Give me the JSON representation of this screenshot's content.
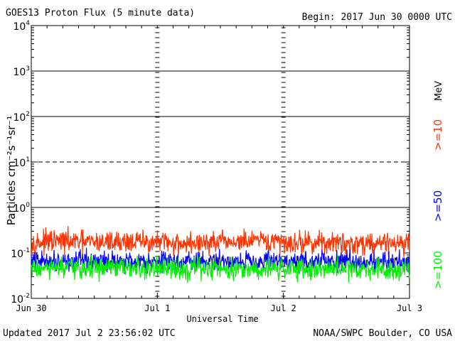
{
  "header": {
    "title": "GOES13 Proton Flux (5 minute data)",
    "begin": "Begin: 2017 Jun 30 0000 UTC"
  },
  "footer": {
    "updated": "Updated 2017 Jul  2 23:56:02 UTC",
    "credit": "NOAA/SWPC Boulder, CO USA"
  },
  "chart_data": {
    "type": "line",
    "title": "GOES13 Proton Flux (5 minute data)",
    "xlabel": "Universal Time",
    "ylabel": "Particles cm⁻²s⁻¹sr⁻¹",
    "y_scale": "log",
    "ylim": [
      0.01,
      10000
    ],
    "y_ticks": [
      {
        "value": 0.01,
        "base": "10",
        "exp": "-2"
      },
      {
        "value": 0.1,
        "base": "10",
        "exp": "-1"
      },
      {
        "value": 1,
        "base": "10",
        "exp": "0"
      },
      {
        "value": 10,
        "base": "10",
        "exp": "1"
      },
      {
        "value": 100,
        "base": "10",
        "exp": "2"
      },
      {
        "value": 1000,
        "base": "10",
        "exp": "3"
      },
      {
        "value": 10000,
        "base": "10",
        "exp": "4"
      }
    ],
    "x_range_days": [
      0,
      3
    ],
    "x_ticks": [
      {
        "day": 0,
        "label": "Jun 30"
      },
      {
        "day": 1,
        "label": "Jul 1"
      },
      {
        "day": 2,
        "label": "Jul 2"
      },
      {
        "day": 3,
        "label": "Jul 3"
      }
    ],
    "reference_lines": [
      {
        "value": 1000,
        "style": "solid"
      },
      {
        "value": 100,
        "style": "solid"
      },
      {
        "value": 10,
        "style": "dashed"
      },
      {
        "value": 1,
        "style": "solid"
      }
    ],
    "energy_unit": "MeV",
    "series": [
      {
        "name": ">=10",
        "color": "#ff3300",
        "x": [
          0,
          0.25,
          0.5,
          0.75,
          1,
          1.25,
          1.5,
          1.75,
          2,
          2.25,
          2.5,
          2.75,
          3
        ],
        "values": [
          0.17,
          0.18,
          0.17,
          0.18,
          0.17,
          0.16,
          0.17,
          0.18,
          0.17,
          0.17,
          0.16,
          0.17,
          0.17
        ]
      },
      {
        "name": ">=50",
        "color": "#0000ff",
        "x": [
          0,
          0.25,
          0.5,
          0.75,
          1,
          1.25,
          1.5,
          1.75,
          2,
          2.25,
          2.5,
          2.75,
          3
        ],
        "values": [
          0.065,
          0.068,
          0.065,
          0.067,
          0.066,
          0.064,
          0.066,
          0.068,
          0.065,
          0.066,
          0.064,
          0.065,
          0.065
        ]
      },
      {
        "name": ">=100",
        "color": "#00ee00",
        "x": [
          0,
          0.25,
          0.5,
          0.75,
          1,
          1.25,
          1.5,
          1.75,
          2,
          2.25,
          2.5,
          2.75,
          3
        ],
        "values": [
          0.045,
          0.045,
          0.046,
          0.045,
          0.044,
          0.045,
          0.046,
          0.045,
          0.045,
          0.044,
          0.045,
          0.046,
          0.045
        ]
      }
    ]
  }
}
